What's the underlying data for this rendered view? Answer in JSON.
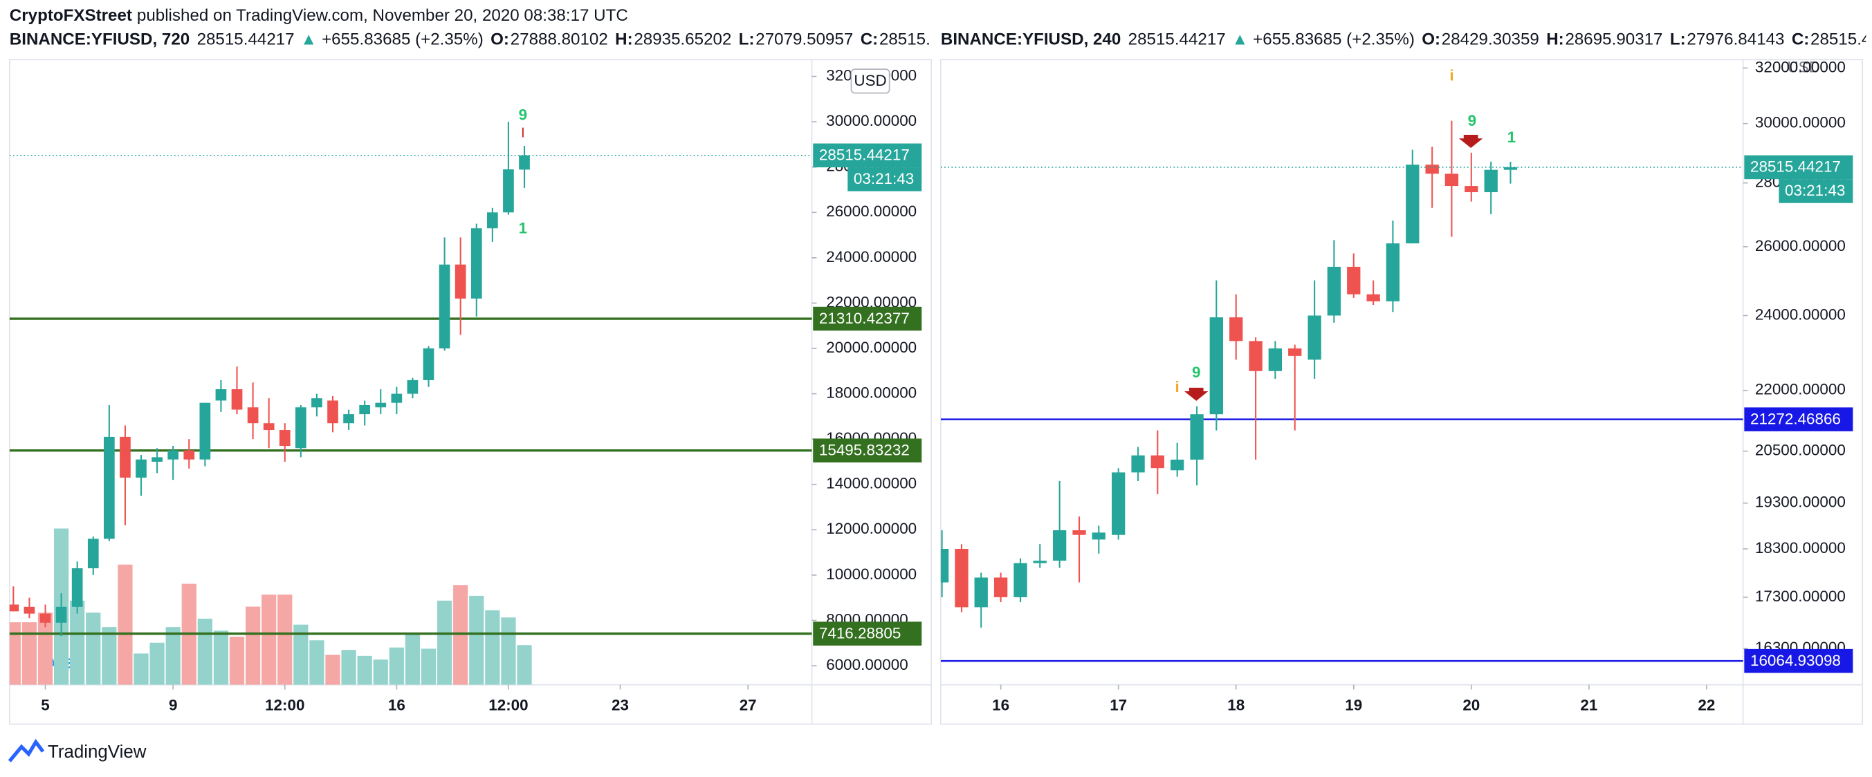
{
  "header": {
    "publisher": "CryptoFXStreet",
    "published": "published on TradingView.com, November 20, 2020 08:38:17 UTC"
  },
  "legend_labels": {
    "o": "O:",
    "h": "H:",
    "l": "L:",
    "c": "C:"
  },
  "footer": "TradingView",
  "chart_data": [
    {
      "type": "candlestick",
      "title": "BINANCE:YFIUSD, 720",
      "change_arrow": "▲",
      "change": "+655.83685 (+2.35%)",
      "currency": "USD",
      "countdown": "03:21:43",
      "log_scale": false,
      "grid": false,
      "up_color": "#26a69a",
      "down_color": "#ef5350",
      "volume_up_color": "#93d3cc",
      "volume_down_color": "#f5a7a5",
      "x": [
        4,
        4.5,
        5,
        5.5,
        6,
        6.5,
        7,
        7.5,
        8,
        8.5,
        9,
        9.5,
        10,
        10.5,
        11,
        11.5,
        12,
        12.5,
        13,
        13.5,
        14,
        14.5,
        15,
        15.5,
        16,
        16.5,
        17,
        17.5,
        18,
        18.5,
        19,
        19.5,
        20
      ],
      "open": [
        8700,
        8600,
        8300,
        7900,
        8600,
        10300,
        11600,
        16100,
        14300,
        15000,
        15100,
        15500,
        15100,
        17700,
        18200,
        17400,
        16700,
        16400,
        15600,
        17400,
        17700,
        16700,
        17100,
        17400,
        17600,
        18000,
        18600,
        20000,
        23700,
        22200,
        25300,
        26000,
        27888.80102
      ],
      "high": [
        9500,
        9000,
        8700,
        9200,
        10600,
        11700,
        17500,
        16600,
        15300,
        15600,
        15700,
        16000,
        17600,
        18600,
        19200,
        18500,
        17800,
        16700,
        17500,
        18000,
        17900,
        17300,
        17700,
        18200,
        18300,
        18700,
        20100,
        24900,
        24900,
        25500,
        26200,
        30000,
        28935.65202
      ],
      "low": [
        8400,
        8100,
        7700,
        7300,
        8300,
        10000,
        11500,
        12200,
        13500,
        14500,
        14200,
        14700,
        14800,
        17200,
        17100,
        16000,
        15600,
        15000,
        15200,
        17000,
        16300,
        16400,
        16600,
        17100,
        17100,
        17800,
        18300,
        19900,
        20600,
        21400,
        24700,
        25900,
        27079.50957
      ],
      "close": [
        8400,
        8300,
        7900,
        8600,
        10300,
        11600,
        16100,
        14300,
        15100,
        15200,
        15500,
        15100,
        17600,
        18200,
        17300,
        16700,
        16400,
        15700,
        17400,
        17800,
        16700,
        17100,
        17500,
        17600,
        18000,
        18600,
        20000,
        23700,
        22200,
        25300,
        26000,
        27900,
        28515.44217
      ],
      "volume": [
        52,
        52,
        60,
        130,
        70,
        60,
        48,
        100,
        26,
        35,
        48,
        84,
        55,
        45,
        40,
        65,
        75,
        75,
        50,
        37,
        25,
        29,
        24,
        21,
        31,
        43,
        30,
        70,
        83,
        74,
        62,
        56,
        33
      ],
      "xlim": [
        3.88,
        29.0
      ],
      "xticks": [
        5,
        9,
        {
          "value": 12.5,
          "label": "12:00"
        },
        16,
        {
          "value": 19.5,
          "label": "12:00"
        },
        23,
        27
      ],
      "ylim": [
        5160,
        32740
      ],
      "yticks": [
        {
          "value": 6000,
          "label": "6000.00000"
        },
        {
          "value": 8000,
          "label": "8000.00000"
        },
        {
          "value": 10000,
          "label": "10000.00000"
        },
        {
          "value": 12000,
          "label": "12000.00000"
        },
        {
          "value": 14000,
          "label": "14000.00000"
        },
        {
          "value": 16000,
          "label": "16000.00000"
        },
        {
          "value": 18000,
          "label": "18000.00000"
        },
        {
          "value": 20000,
          "label": "20000.00000"
        },
        {
          "value": 22000,
          "label": "22000.00000"
        },
        {
          "value": 24000,
          "label": "24000.00000"
        },
        {
          "value": 26000,
          "label": "26000.00000"
        },
        {
          "value": 28000,
          "label": "28000.00000"
        },
        {
          "value": 30000,
          "label": "30000.00000"
        },
        {
          "value": 32000,
          "label": "32000.00000"
        }
      ],
      "hlines": [
        {
          "value": 21310.42377,
          "color": "#33701f"
        },
        {
          "value": 15495.83232,
          "color": "#33701f"
        },
        {
          "value": 7416.28805,
          "color": "#33701f"
        }
      ],
      "annotations": [
        {
          "text": "9",
          "color": "#22c56b"
        },
        {
          "text": "1",
          "color": "#22c56b"
        },
        {
          "text": "A13",
          "color": "#2196f3"
        }
      ]
    },
    {
      "type": "candlestick",
      "title": "BINANCE:YFIUSD, 240",
      "change_arrow": "▲",
      "change": "+655.83685 (+2.35%)",
      "currency": "USD",
      "countdown": "03:21:43",
      "log_scale": true,
      "grid": false,
      "up_color": "#26a69a",
      "down_color": "#ef5350",
      "x": [
        15.5,
        15.667,
        15.833,
        16,
        16.167,
        16.333,
        16.5,
        16.667,
        16.833,
        17,
        17.167,
        17.333,
        17.5,
        17.667,
        17.833,
        18,
        18.167,
        18.333,
        18.5,
        18.667,
        18.833,
        19,
        19.167,
        19.333,
        19.5,
        19.667,
        19.833,
        20,
        20.167,
        20.333
      ],
      "open": [
        17600,
        18300,
        17100,
        17700,
        17300,
        18000,
        18050,
        18700,
        18500,
        18600,
        20000,
        20400,
        20050,
        20300,
        21400,
        23950,
        23300,
        22500,
        23100,
        22800,
        24000,
        25400,
        24600,
        24400,
        26100,
        28600,
        28300,
        27900,
        27700,
        28429.30359
      ],
      "high": [
        18700,
        18400,
        17800,
        17800,
        18100,
        18400,
        19800,
        19000,
        18800,
        20100,
        20600,
        21000,
        20700,
        21600,
        25000,
        24600,
        23400,
        23300,
        23200,
        25000,
        26200,
        25800,
        25000,
        26800,
        29100,
        29200,
        30100,
        29000,
        28700,
        28695.90317
      ],
      "low": [
        17300,
        17000,
        16700,
        17200,
        17200,
        17900,
        17900,
        17600,
        18200,
        18500,
        19800,
        19500,
        19900,
        19700,
        21000,
        22800,
        20300,
        22300,
        21000,
        22300,
        23800,
        24500,
        24300,
        24100,
        26100,
        27200,
        26300,
        27400,
        27000,
        27976.84143
      ],
      "close": [
        18300,
        17100,
        17700,
        17300,
        18000,
        18050,
        18700,
        18600,
        18650,
        20000,
        20400,
        20100,
        20300,
        21400,
        23950,
        23300,
        22500,
        23100,
        22900,
        24000,
        25400,
        24600,
        24400,
        26100,
        28600,
        28300,
        27900,
        27700,
        28430,
        28515.44217
      ],
      "xlim": [
        15.49,
        22.31
      ],
      "xticks": [
        16,
        17,
        18,
        19,
        20,
        21,
        22
      ],
      "ylim": [
        15626,
        32313
      ],
      "yticks": [
        {
          "value": 16300,
          "label": "16300.00000"
        },
        {
          "value": 17300,
          "label": "17300.00000"
        },
        {
          "value": 18300,
          "label": "18300.00000"
        },
        {
          "value": 19300,
          "label": "19300.00000"
        },
        {
          "value": 20500,
          "label": "20500.00000"
        },
        {
          "value": 22000,
          "label": "22000.00000"
        },
        {
          "value": 24000,
          "label": "24000.00000"
        },
        {
          "value": 26000,
          "label": "26000.00000"
        },
        {
          "value": 28000,
          "label": "28000.00000"
        },
        {
          "value": 30000,
          "label": "30000.00000"
        },
        {
          "value": 32000,
          "label": "32000.00000"
        }
      ],
      "hlines": [
        {
          "value": 21272.46866,
          "color": "#1818e6"
        },
        {
          "value": 16064.93098,
          "color": "#1818e6"
        }
      ],
      "annotations": [
        {
          "text": "9",
          "color": "#22c56b"
        },
        {
          "text": "1",
          "color": "#22c56b"
        },
        {
          "text": "9",
          "color": "#22c56b"
        },
        {
          "text": "i",
          "color": "#f5a623"
        },
        {
          "text": "i",
          "color": "#f5a623"
        }
      ]
    }
  ]
}
